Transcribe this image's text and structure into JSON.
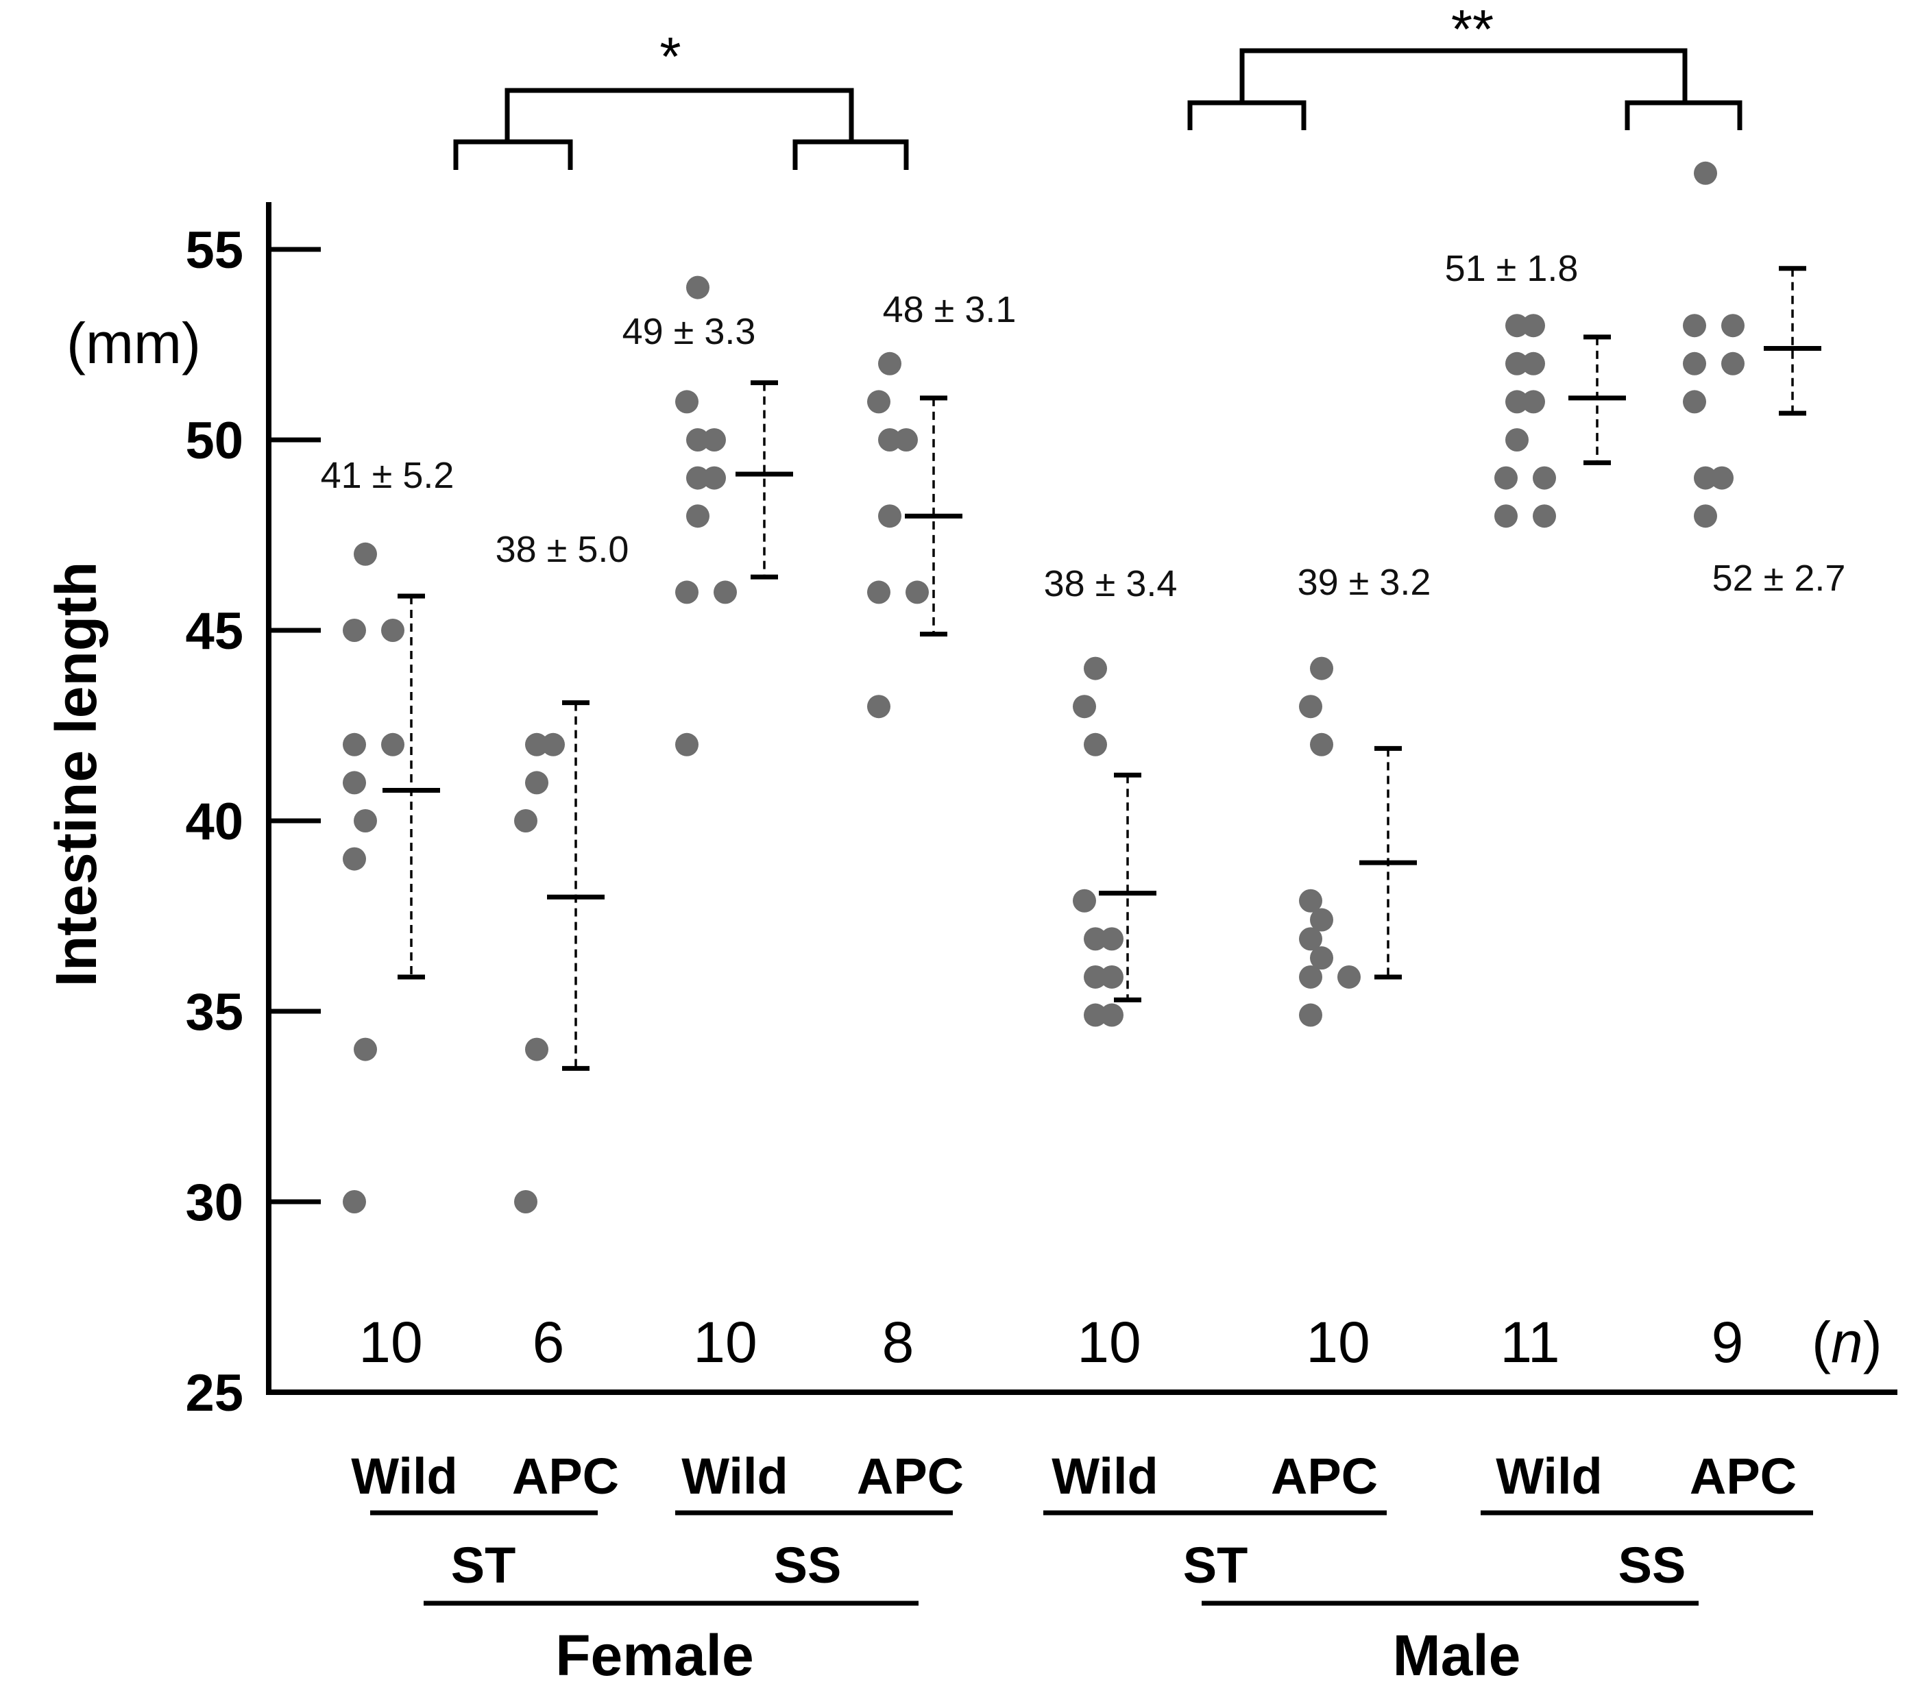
{
  "chart_data": {
    "type": "scatter",
    "title": "",
    "ylabel": "Intestine length",
    "yunit": "(mm)",
    "ylim": [
      25,
      56
    ],
    "yticks": [
      25,
      30,
      35,
      40,
      45,
      50,
      55
    ],
    "n_unit_label": "n",
    "groups": [
      {
        "sex": "Female",
        "diet": "ST",
        "genotype": "Wild",
        "n": 10,
        "stat": "41 ± 5.2",
        "mean": 40.8,
        "sd_low": 35.9,
        "sd_high": 45.9,
        "points": [
          47,
          45,
          45,
          42,
          42,
          41,
          40,
          39,
          34,
          30
        ]
      },
      {
        "sex": "Female",
        "diet": "ST",
        "genotype": "APC",
        "n": 6,
        "stat": "38 ±  5.0",
        "mean": 38.0,
        "sd_low": 33.5,
        "sd_high": 43.1,
        "points": [
          42,
          42,
          41,
          40,
          34,
          30
        ]
      },
      {
        "sex": "Female",
        "diet": "SS",
        "genotype": "Wild",
        "n": 10,
        "stat": "49 ± 3.3",
        "mean": 49.1,
        "sd_low": 46.4,
        "sd_high": 51.5,
        "points": [
          54,
          51,
          50,
          50,
          49,
          49,
          48,
          46,
          46,
          42
        ]
      },
      {
        "sex": "Female",
        "diet": "SS",
        "genotype": "APC",
        "n": 8,
        "stat": "48 ± 3.1",
        "mean": 48.0,
        "sd_low": 44.9,
        "sd_high": 51.1,
        "points": [
          52,
          51,
          50,
          50,
          48,
          46,
          46,
          43
        ]
      },
      {
        "sex": "Male",
        "diet": "ST",
        "genotype": "Wild",
        "n": 10,
        "stat": "38 ± 3.4",
        "mean": 38.1,
        "sd_low": 35.3,
        "sd_high": 41.2,
        "points": [
          44,
          43,
          42,
          37.9,
          36.9,
          36.9,
          35.9,
          35.9,
          34.9,
          34.9
        ]
      },
      {
        "sex": "Male",
        "diet": "ST",
        "genotype": "APC",
        "n": 10,
        "stat": "39 ± 3.2",
        "mean": 38.9,
        "sd_low": 35.9,
        "sd_high": 41.9,
        "points": [
          44,
          43,
          42,
          37.9,
          37.4,
          36.9,
          36.4,
          35.9,
          35.9,
          34.9
        ]
      },
      {
        "sex": "Male",
        "diet": "SS",
        "genotype": "Wild",
        "n": 11,
        "stat": "51 ± 1.8",
        "mean": 51.1,
        "sd_low": 49.4,
        "sd_high": 52.7,
        "points": [
          53,
          53,
          52,
          52,
          51,
          51,
          50,
          49,
          49,
          48,
          48
        ]
      },
      {
        "sex": "Male",
        "diet": "SS",
        "genotype": "APC",
        "n": 9,
        "stat": "52 ± 2.7",
        "mean": 52.4,
        "sd_low": 50.7,
        "sd_high": 54.5,
        "points": [
          57,
          53,
          53,
          52,
          52,
          51,
          49,
          49,
          48
        ]
      }
    ],
    "diet_labels": [
      "ST",
      "SS",
      "ST",
      "SS"
    ],
    "sex_labels": [
      "Female",
      "Male"
    ],
    "significance": [
      {
        "label": "*",
        "between": "Female ST vs Female SS"
      },
      {
        "label": "**",
        "between": "Male ST vs Male SS"
      }
    ]
  }
}
